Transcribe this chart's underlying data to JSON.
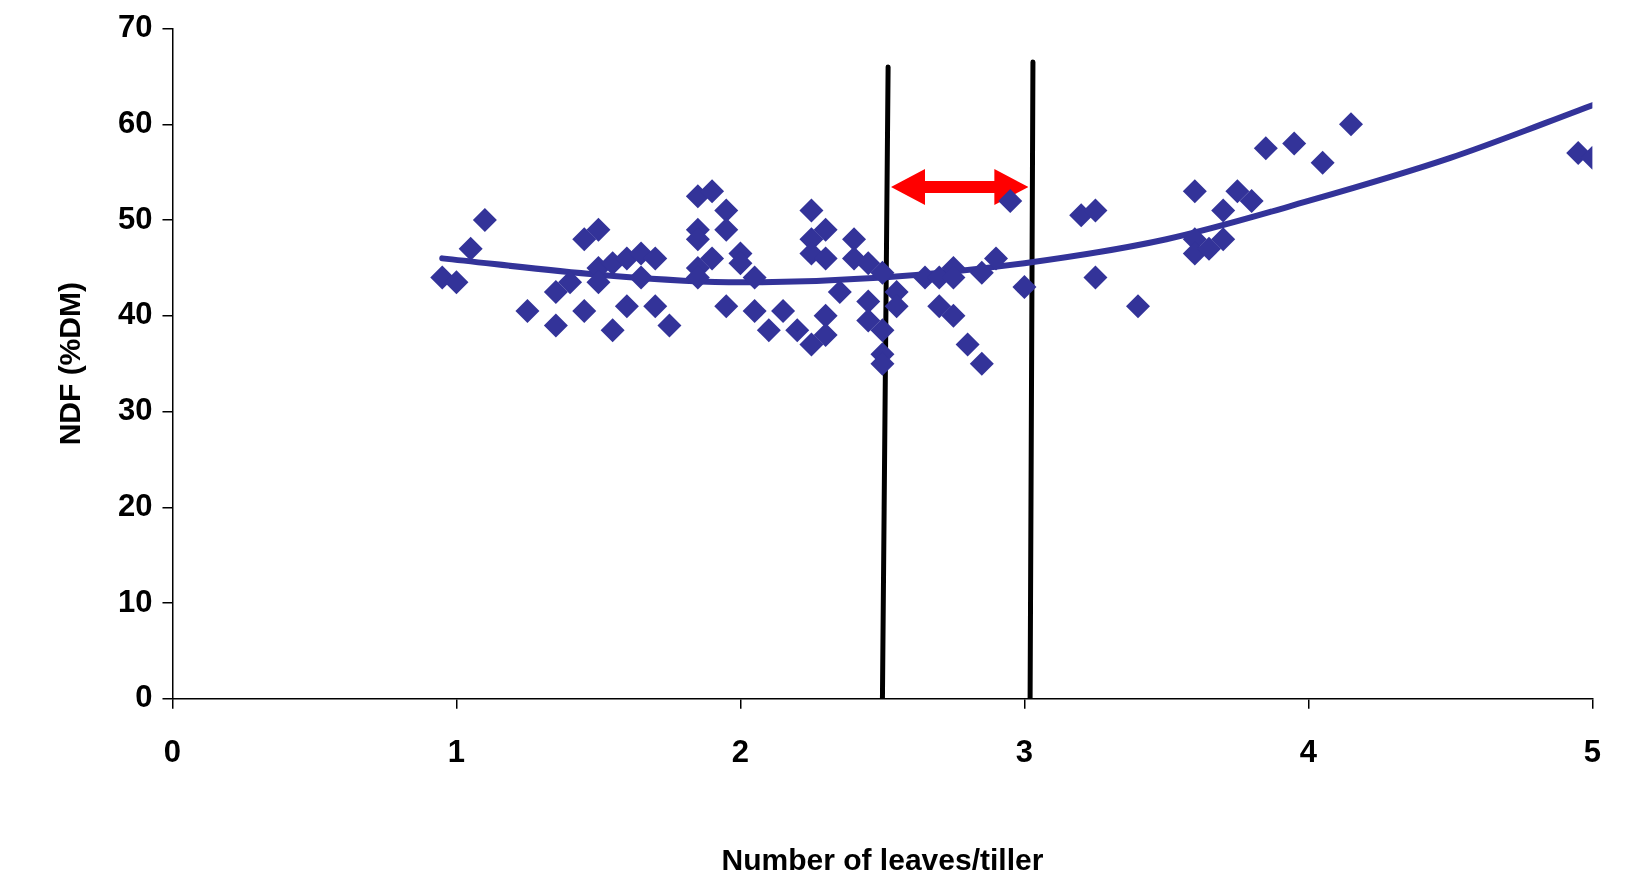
{
  "chart_data": {
    "type": "scatter",
    "xlabel": "Number of leaves/tiller",
    "ylabel": "NDF (%DM)",
    "xlim": [
      0,
      5
    ],
    "ylim": [
      0,
      70
    ],
    "xticks": [
      0,
      1,
      2,
      3,
      4,
      5
    ],
    "yticks": [
      0,
      10,
      20,
      30,
      40,
      50,
      60,
      70
    ],
    "grid": false,
    "legend": false,
    "series": [
      {
        "marker": "diamond",
        "color": "#333399",
        "x": [
          0.95,
          1.0,
          1.05,
          1.1,
          1.25,
          1.35,
          1.35,
          1.4,
          1.45,
          1.45,
          1.5,
          1.5,
          1.5,
          1.55,
          1.55,
          1.6,
          1.6,
          1.65,
          1.65,
          1.7,
          1.7,
          1.75,
          1.85,
          1.85,
          1.85,
          1.85,
          1.85,
          1.9,
          1.9,
          1.95,
          1.95,
          1.95,
          2.0,
          2.0,
          2.05,
          2.05,
          2.1,
          2.15,
          2.2,
          2.25,
          2.25,
          2.25,
          2.25,
          2.3,
          2.3,
          2.3,
          2.3,
          2.35,
          2.4,
          2.4,
          2.45,
          2.45,
          2.45,
          2.5,
          2.5,
          2.5,
          2.5,
          2.55,
          2.55,
          2.65,
          2.7,
          2.7,
          2.75,
          2.75,
          2.75,
          2.8,
          2.85,
          2.85,
          2.9,
          2.95,
          3.0,
          3.2,
          3.25,
          3.25,
          3.4,
          3.6,
          3.6,
          3.6,
          3.65,
          3.7,
          3.7,
          3.75,
          3.8,
          3.85,
          3.95,
          4.05,
          4.15,
          4.95,
          5.0
        ],
        "values": [
          44,
          43.5,
          47,
          50,
          40.5,
          39,
          42.5,
          43.5,
          48,
          40.5,
          49,
          45,
          43.5,
          38.5,
          45.5,
          46,
          41,
          46.5,
          44,
          46,
          41,
          39,
          52.5,
          49,
          48,
          45,
          44,
          53,
          46,
          51,
          49,
          41,
          46.5,
          45.5,
          44,
          40.5,
          38.5,
          40.5,
          38.5,
          51,
          48,
          46.5,
          37,
          49,
          46,
          40,
          38,
          42.5,
          48,
          46,
          45.5,
          41.5,
          39.5,
          44.5,
          38.5,
          36,
          35,
          42.5,
          41,
          44,
          44,
          41,
          45,
          44,
          40,
          37,
          35,
          44.5,
          46,
          52,
          43,
          50.5,
          51,
          44,
          41,
          53,
          48,
          46.5,
          47,
          51,
          48,
          53,
          52,
          57.5,
          58,
          56,
          60,
          57,
          56.5
        ]
      },
      {
        "type": "line",
        "marker": "none",
        "color": "#333399",
        "x": [
          0.95,
          1.5,
          2,
          2.5,
          3,
          3.5,
          4,
          4.5,
          5
        ],
        "values": [
          46,
          44.3,
          43.5,
          44,
          45.5,
          48,
          52,
          56.5,
          62
        ]
      },
      {
        "type": "line",
        "marker": "none",
        "color": "#000000",
        "x": [
          2.52,
          2.5
        ],
        "values": [
          66,
          0
        ]
      },
      {
        "type": "line",
        "marker": "none",
        "color": "#000000",
        "x": [
          3.03,
          3.02
        ],
        "values": [
          66.5,
          0
        ]
      }
    ]
  }
}
